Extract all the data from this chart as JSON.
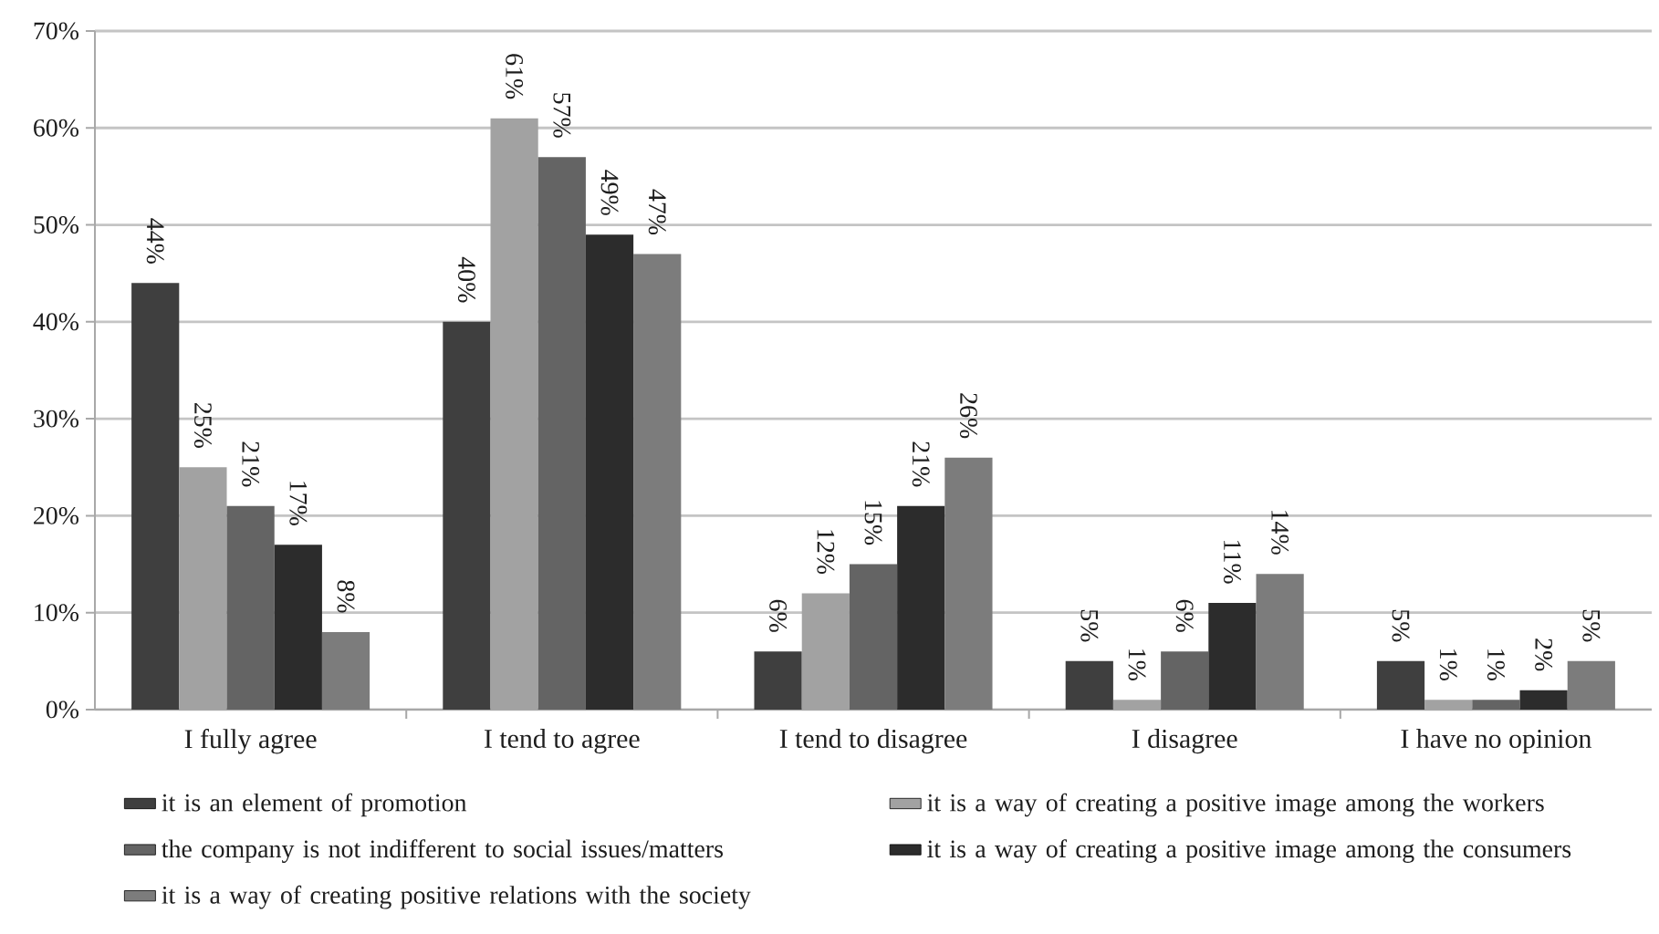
{
  "chart_data": {
    "type": "bar",
    "categories": [
      "I fully agree",
      "I tend to agree",
      "I tend to disagree",
      "I disagree",
      "I have no opinion"
    ],
    "series": [
      {
        "name": "it is an element of promotion",
        "color": "#3f3f3f",
        "values": [
          44,
          40,
          6,
          5,
          5
        ],
        "value_labels": [
          "44%",
          "40%",
          "6%",
          "5%",
          "5%"
        ]
      },
      {
        "name": "it is a way of creating a positive image among the workers",
        "color": "#a2a2a2",
        "values": [
          25,
          61,
          12,
          1,
          1
        ],
        "value_labels": [
          "25%",
          "61%",
          "12%",
          "1%",
          "1%"
        ]
      },
      {
        "name": "the company is not indifferent to social issues/matters",
        "color": "#646464",
        "values": [
          21,
          57,
          15,
          6,
          1
        ],
        "value_labels": [
          "21%",
          "57%",
          "15%",
          "6%",
          "1%"
        ]
      },
      {
        "name": "it is a way of creating a positive image among the consumers",
        "color": "#2c2c2c",
        "values": [
          17,
          49,
          21,
          11,
          2
        ],
        "value_labels": [
          "17%",
          "49%",
          "21%",
          "11%",
          "2%"
        ]
      },
      {
        "name": "it is a way of creating positive relations with the society",
        "color": "#7c7c7c",
        "values": [
          8,
          47,
          26,
          14,
          5
        ],
        "value_labels": [
          "8%",
          "47%",
          "26%",
          "14%",
          "5%"
        ]
      }
    ],
    "ylim": [
      0,
      70
    ],
    "yticks": [
      {
        "value": 0,
        "label": "0%"
      },
      {
        "value": 10,
        "label": "10%"
      },
      {
        "value": 20,
        "label": "20%"
      },
      {
        "value": 30,
        "label": "30%"
      },
      {
        "value": 40,
        "label": "40%"
      },
      {
        "value": 50,
        "label": "50%"
      },
      {
        "value": 60,
        "label": "60%"
      },
      {
        "value": 70,
        "label": "70%"
      }
    ],
    "grid": "y",
    "legend": "bottom"
  }
}
